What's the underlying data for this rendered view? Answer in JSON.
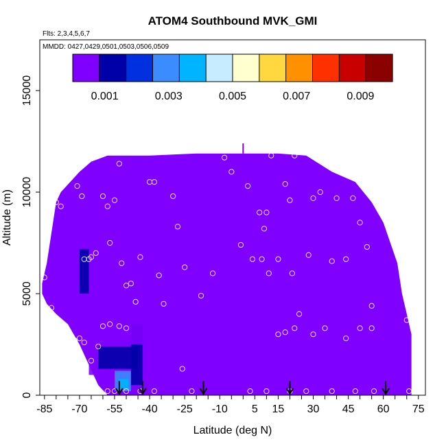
{
  "chart_data": {
    "type": "heatmap",
    "title": "ATOM4 Southbound MVK_GMI",
    "flights_note": "Flts: 2,3,4,5,6,7",
    "dates_note": "MMDD: 0427,0429,0501,0503,0506,0509",
    "xlabel": "Latitude (deg N)",
    "ylabel": "Altitude (m)",
    "xlim": [
      -87,
      78
    ],
    "ylim": [
      0,
      17500
    ],
    "x_ticks": [
      -85,
      -70,
      -55,
      -40,
      -25,
      -10,
      5,
      15,
      30,
      45,
      60,
      75
    ],
    "y_ticks": [
      0,
      5000,
      10000,
      15000
    ],
    "colorbar": {
      "range": [
        0,
        0.01
      ],
      "tick_values": [
        0.001,
        0.003,
        0.005,
        0.007,
        0.009
      ],
      "tick_labels": [
        "0.001",
        "0.003",
        "0.005",
        "0.007",
        "0.009"
      ],
      "colors": [
        "#7f00ff",
        "#0000a8",
        "#0030e0",
        "#3a8cff",
        "#00b4ff",
        "#c8ecff",
        "#ffffd0",
        "#ffd840",
        "#ff9000",
        "#ff3000",
        "#c80000",
        "#8b0000"
      ]
    },
    "background_value": 0.0001,
    "envelope": [
      [
        -86,
        5500
      ],
      [
        -84,
        6500
      ],
      [
        -82,
        8000
      ],
      [
        -80,
        9500
      ],
      [
        -78,
        10000
      ],
      [
        -74,
        10500
      ],
      [
        -70,
        11000
      ],
      [
        -65,
        11500
      ],
      [
        -58,
        11800
      ],
      [
        -40,
        11800
      ],
      [
        -20,
        11900
      ],
      [
        0,
        11900
      ],
      [
        15,
        11900
      ],
      [
        27,
        11800
      ],
      [
        38,
        11000
      ],
      [
        48,
        10500
      ],
      [
        55,
        9500
      ],
      [
        60,
        8500
      ],
      [
        63,
        7500
      ],
      [
        66,
        6500
      ],
      [
        68,
        5000
      ],
      [
        70,
        4000
      ],
      [
        72,
        3000
      ],
      [
        72,
        0
      ],
      [
        -58,
        0
      ],
      [
        -62,
        500
      ],
      [
        -66,
        1500
      ],
      [
        -70,
        2500
      ],
      [
        -75,
        3500
      ],
      [
        -80,
        4000
      ],
      [
        -84,
        4500
      ],
      [
        -86,
        5000
      ]
    ],
    "enhanced_regions": [
      {
        "lat": [
          -72,
          -62
        ],
        "alt": [
          4500,
          8500
        ],
        "value": 0.0004
      },
      {
        "lat": [
          -70,
          -66
        ],
        "alt": [
          5000,
          7200
        ],
        "value": 0.0011
      },
      {
        "lat": [
          -66,
          -46
        ],
        "alt": [
          1000,
          2800
        ],
        "value": 0.0008
      },
      {
        "lat": [
          -62,
          -45
        ],
        "alt": [
          1300,
          2400
        ],
        "value": 0.0015
      },
      {
        "lat": [
          -48,
          -43
        ],
        "alt": [
          500,
          3500
        ],
        "value": 0.0012
      },
      {
        "lat": [
          -55,
          -48
        ],
        "alt": [
          200,
          1200
        ],
        "value": 0.0028
      },
      {
        "lat": [
          -53,
          -49
        ],
        "alt": [
          300,
          800
        ],
        "value": 0.0036
      },
      {
        "lat": [
          -60,
          -40
        ],
        "alt": [
          2500,
          4500
        ],
        "value": 0.0004
      }
    ],
    "observation_points": [
      [
        -85,
        5800
      ],
      [
        -82,
        4300
      ],
      [
        -80,
        9500
      ],
      [
        -78,
        9300
      ],
      [
        -74,
        10800
      ],
      [
        -72,
        11200
      ],
      [
        -71,
        10300
      ],
      [
        -69,
        9800
      ],
      [
        -68,
        6700
      ],
      [
        -66,
        6700
      ],
      [
        -65,
        6800
      ],
      [
        -63,
        7000
      ],
      [
        -60,
        9800
      ],
      [
        -58,
        9300
      ],
      [
        -57,
        7500
      ],
      [
        -55,
        9600
      ],
      [
        -53,
        11400
      ],
      [
        -52,
        6500
      ],
      [
        -50,
        5400
      ],
      [
        -48,
        5500
      ],
      [
        -46,
        4600
      ],
      [
        -44,
        6800
      ],
      [
        -40,
        10500
      ],
      [
        -38,
        10500
      ],
      [
        -36,
        5900
      ],
      [
        -34,
        4500
      ],
      [
        -30,
        9800
      ],
      [
        -28,
        8300
      ],
      [
        -25,
        6300
      ],
      [
        -18,
        4900
      ],
      [
        -13,
        6000
      ],
      [
        -8,
        11700
      ],
      [
        -5,
        11000
      ],
      [
        -1,
        7400
      ],
      [
        2,
        10300
      ],
      [
        4,
        6700
      ],
      [
        7,
        9000
      ],
      [
        8,
        6700
      ],
      [
        9,
        8200
      ],
      [
        10,
        9000
      ],
      [
        11,
        6000
      ],
      [
        12,
        11800
      ],
      [
        15,
        6700
      ],
      [
        18,
        10400
      ],
      [
        20,
        9600
      ],
      [
        21,
        6000
      ],
      [
        22,
        11800
      ],
      [
        24,
        4000
      ],
      [
        28,
        6900
      ],
      [
        30,
        9700
      ],
      [
        33,
        10000
      ],
      [
        38,
        6600
      ],
      [
        40,
        9700
      ],
      [
        44,
        6700
      ],
      [
        47,
        9700
      ],
      [
        50,
        8500
      ],
      [
        53,
        7300
      ],
      [
        55,
        4400
      ],
      [
        -72,
        2700
      ],
      [
        -70,
        2800
      ],
      [
        -68,
        2600
      ],
      [
        -65,
        1700
      ],
      [
        -62,
        2400
      ],
      [
        -60,
        3400
      ],
      [
        -57,
        3500
      ],
      [
        -53,
        3400
      ],
      [
        -50,
        3300
      ],
      [
        -62,
        200
      ],
      [
        -58,
        200
      ],
      [
        -55,
        200
      ],
      [
        -50,
        200
      ],
      [
        -44,
        200
      ],
      [
        -38,
        200
      ],
      [
        -26,
        1300
      ],
      [
        -22,
        200
      ],
      [
        3,
        200
      ],
      [
        10,
        200
      ],
      [
        15,
        3000
      ],
      [
        18,
        3100
      ],
      [
        20,
        200
      ],
      [
        22,
        3300
      ],
      [
        27,
        200
      ],
      [
        30,
        3000
      ],
      [
        35,
        3300
      ],
      [
        38,
        200
      ],
      [
        44,
        2800
      ],
      [
        48,
        200
      ],
      [
        50,
        3300
      ],
      [
        55,
        3300
      ],
      [
        56,
        200
      ],
      [
        70,
        3700
      ],
      [
        71,
        200
      ]
    ],
    "arrows_lat": [
      -53,
      -43,
      -17,
      20,
      61
    ]
  }
}
